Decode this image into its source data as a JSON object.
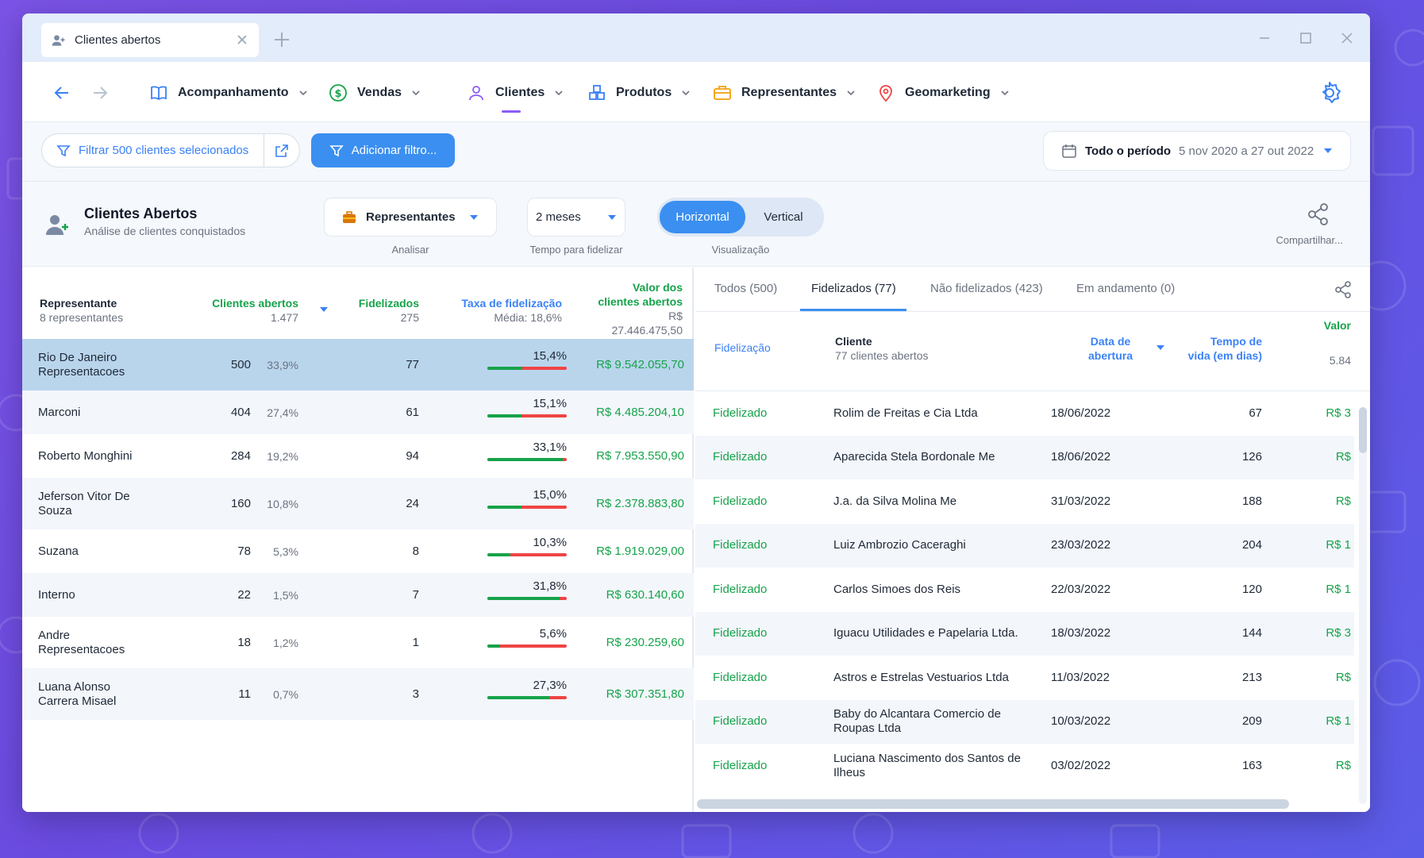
{
  "window": {
    "tab_title": "Clientes abertos"
  },
  "nav": {
    "items": [
      {
        "label": "Acompanhamento",
        "icon": "book-icon"
      },
      {
        "label": "Vendas",
        "icon": "dollar-icon"
      },
      {
        "label": "Clientes",
        "icon": "user-icon"
      },
      {
        "label": "Produtos",
        "icon": "boxes-icon"
      },
      {
        "label": "Representantes",
        "icon": "briefcase-icon"
      },
      {
        "label": "Geomarketing",
        "icon": "map-pin-icon"
      }
    ],
    "active": "Clientes"
  },
  "filter": {
    "selected_label": "Filtrar 500 clientes selecionados",
    "add_label": "Adicionar filtro...",
    "period_label": "Todo o período",
    "period_range": "5 nov 2020 a 27 out 2022"
  },
  "header": {
    "title": "Clientes Abertos",
    "subtitle": "Análise de clientes conquistados",
    "analyze_value": "Representantes",
    "analyze_label": "Analisar",
    "time_value": "2 meses",
    "time_label": "Tempo para fidelizar",
    "view_on": "Horizontal",
    "view_off": "Vertical",
    "view_label": "Visualização",
    "share_label": "Compartilhar..."
  },
  "left_table": {
    "col_rep": "Representante",
    "col_rep_sub": "8 representantes",
    "col_open": "Clientes abertos",
    "col_open_sub": "1.477",
    "col_fid": "Fidelizados",
    "col_fid_sub": "275",
    "col_rate": "Taxa de fidelização",
    "col_rate_sub": "Média: 18,6%",
    "col_value_1": "Valor dos",
    "col_value_2": "clientes abertos",
    "col_value_3": "R$",
    "col_value_4": "27.446.475,50",
    "rows": [
      {
        "name1": "Rio De Janeiro",
        "name2": "Representacoes",
        "open": "500",
        "pct": "33,9%",
        "fid": "77",
        "rate": "15,4%",
        "rate_value": 0.154,
        "value": "R$ 9.542.055,70"
      },
      {
        "name1": "Marconi",
        "name2": "",
        "open": "404",
        "pct": "27,4%",
        "fid": "61",
        "rate": "15,1%",
        "rate_value": 0.151,
        "value": "R$ 4.485.204,10"
      },
      {
        "name1": "Roberto Monghini",
        "name2": "",
        "open": "284",
        "pct": "19,2%",
        "fid": "94",
        "rate": "33,1%",
        "rate_value": 0.331,
        "value": "R$ 7.953.550,90"
      },
      {
        "name1": "Jeferson Vitor De",
        "name2": "Souza",
        "open": "160",
        "pct": "10,8%",
        "fid": "24",
        "rate": "15,0%",
        "rate_value": 0.15,
        "value": "R$ 2.378.883,80"
      },
      {
        "name1": "Suzana",
        "name2": "",
        "open": "78",
        "pct": "5,3%",
        "fid": "8",
        "rate": "10,3%",
        "rate_value": 0.103,
        "value": "R$ 1.919.029,00"
      },
      {
        "name1": "Interno",
        "name2": "",
        "open": "22",
        "pct": "1,5%",
        "fid": "7",
        "rate": "31,8%",
        "rate_value": 0.318,
        "value": "R$ 630.140,60"
      },
      {
        "name1": "Andre",
        "name2": "Representacoes",
        "open": "18",
        "pct": "1,2%",
        "fid": "1",
        "rate": "5,6%",
        "rate_value": 0.056,
        "value": "R$ 230.259,60"
      },
      {
        "name1": "Luana Alonso",
        "name2": "Carrera Misael",
        "open": "11",
        "pct": "0,7%",
        "fid": "3",
        "rate": "27,3%",
        "rate_value": 0.273,
        "value": "R$ 307.351,80"
      }
    ]
  },
  "right_panel": {
    "tabs": [
      "Todos (500)",
      "Fidelizados (77)",
      "Não fidelizados (423)",
      "Em andamento (0)"
    ],
    "active_tab": "Fidelizados (77)",
    "col_fid": "Fidelização",
    "col_client": "Cliente",
    "col_client_sub": "77 clientes abertos",
    "col_date_1": "Data de",
    "col_date_2": "abertura",
    "col_life_1": "Tempo de",
    "col_life_2": "vida (em dias)",
    "col_value": "Valor",
    "col_value_sub": "5.84",
    "rows": [
      {
        "status": "Fidelizado",
        "c1": "Rolim de Freitas e Cia Ltda",
        "c2": "",
        "date": "18/06/2022",
        "days": "67",
        "value": "R$ 3"
      },
      {
        "status": "Fidelizado",
        "c1": "Aparecida Stela Bordonale Me",
        "c2": "",
        "date": "18/06/2022",
        "days": "126",
        "value": "R$"
      },
      {
        "status": "Fidelizado",
        "c1": "J.a. da Silva Molina Me",
        "c2": "",
        "date": "31/03/2022",
        "days": "188",
        "value": "R$"
      },
      {
        "status": "Fidelizado",
        "c1": "Luiz Ambrozio Caceraghi",
        "c2": "",
        "date": "23/03/2022",
        "days": "204",
        "value": "R$ 1"
      },
      {
        "status": "Fidelizado",
        "c1": "Carlos Simoes dos Reis",
        "c2": "",
        "date": "22/03/2022",
        "days": "120",
        "value": "R$ 1"
      },
      {
        "status": "Fidelizado",
        "c1": "Iguacu Utilidades e Papelaria Ltda.",
        "c2": "",
        "date": "18/03/2022",
        "days": "144",
        "value": "R$ 3"
      },
      {
        "status": "Fidelizado",
        "c1": "Astros e Estrelas Vestuarios Ltda",
        "c2": "",
        "date": "11/03/2022",
        "days": "213",
        "value": "R$"
      },
      {
        "status": "Fidelizado",
        "c1": "Baby do Alcantara Comercio de",
        "c2": "Roupas Ltda",
        "date": "10/03/2022",
        "days": "209",
        "value": "R$ 1"
      },
      {
        "status": "Fidelizado",
        "c1": "Luciana Nascimento dos Santos de",
        "c2": "Ilheus",
        "date": "03/02/2022",
        "days": "163",
        "value": "R$"
      }
    ]
  },
  "colors": {
    "accent": "#3b8ff0",
    "green": "#16a34a",
    "red": "#ef4444",
    "selected_row": "#b9d5ec",
    "background": "#6a4be0"
  }
}
